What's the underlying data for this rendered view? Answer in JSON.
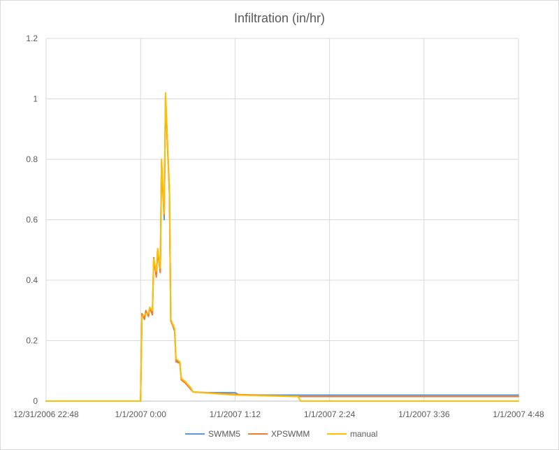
{
  "chart_data": {
    "type": "line",
    "title": "Infiltration (in/hr)",
    "xlabel": "",
    "ylabel": "",
    "xlim": [
      "12/31/2006 22:48",
      "1/1/2007 4:48"
    ],
    "ylim": [
      0,
      1.2
    ],
    "y_ticks": [
      0,
      0.2,
      0.4,
      0.6,
      0.8,
      1,
      1.2
    ],
    "y_tick_labels": [
      "0",
      "0.2",
      "0.4",
      "0.6",
      "0.8",
      "1",
      "1.2"
    ],
    "x_ticks": [
      "12/31/2006 22:48",
      "1/1/2007 0:00",
      "1/1/2007 1:12",
      "1/1/2007 2:24",
      "1/1/2007 3:36",
      "1/1/2007 4:48"
    ],
    "x_tick_labels": [
      "12/31/2006 22:48",
      "1/1/2007 0:00",
      "1/1/2007 1:12",
      "1/1/2007 2:24",
      "1/1/2007 3:36",
      "1/1/2007 4:48"
    ],
    "grid": true,
    "legend_position": "bottom",
    "series": [
      {
        "name": "SWMM5",
        "color": "#5B9BD5",
        "points": [
          [
            "12/31/2006 22:48",
            0
          ],
          [
            "1/1/2007 0:00",
            0
          ],
          [
            "1/1/2007 0:01",
            0.285
          ],
          [
            "1/1/2007 0:03",
            0.275
          ],
          [
            "1/1/2007 0:04",
            0.295
          ],
          [
            "1/1/2007 0:06",
            0.285
          ],
          [
            "1/1/2007 0:07",
            0.305
          ],
          [
            "1/1/2007 0:09",
            0.29
          ],
          [
            "1/1/2007 0:10",
            0.465
          ],
          [
            "1/1/2007 0:12",
            0.42
          ],
          [
            "1/1/2007 0:13",
            0.49
          ],
          [
            "1/1/2007 0:15",
            0.435
          ],
          [
            "1/1/2007 0:16",
            0.785
          ],
          [
            "1/1/2007 0:18",
            0.6
          ],
          [
            "1/1/2007 0:19",
            1.005
          ],
          [
            "1/1/2007 0:22",
            0.685
          ],
          [
            "1/1/2007 0:23",
            0.27
          ],
          [
            "1/1/2007 0:26",
            0.23
          ],
          [
            "1/1/2007 0:27",
            0.135
          ],
          [
            "1/1/2007 0:30",
            0.125
          ],
          [
            "1/1/2007 0:31",
            0.075
          ],
          [
            "1/1/2007 0:34",
            0.065
          ],
          [
            "1/1/2007 0:36",
            0.055
          ],
          [
            "1/1/2007 0:38",
            0.045
          ],
          [
            "1/1/2007 0:40",
            0.03
          ],
          [
            "1/1/2007 0:49",
            0.028
          ],
          [
            "1/1/2007 1:12",
            0.028
          ],
          [
            "1/1/2007 1:15",
            0.02
          ],
          [
            "1/1/2007 2:00",
            0.02
          ],
          [
            "1/1/2007 4:48",
            0.02
          ]
        ]
      },
      {
        "name": "XPSWMM",
        "color": "#ED7D31",
        "points": [
          [
            "12/31/2006 22:48",
            0
          ],
          [
            "1/1/2007 0:00",
            0
          ],
          [
            "1/1/2007 0:01",
            0.29
          ],
          [
            "1/1/2007 0:03",
            0.27
          ],
          [
            "1/1/2007 0:04",
            0.3
          ],
          [
            "1/1/2007 0:06",
            0.28
          ],
          [
            "1/1/2007 0:07",
            0.31
          ],
          [
            "1/1/2007 0:09",
            0.285
          ],
          [
            "1/1/2007 0:10",
            0.475
          ],
          [
            "1/1/2007 0:12",
            0.41
          ],
          [
            "1/1/2007 0:13",
            0.5
          ],
          [
            "1/1/2007 0:15",
            0.425
          ],
          [
            "1/1/2007 0:16",
            0.795
          ],
          [
            "1/1/2007 0:18",
            0.615
          ],
          [
            "1/1/2007 0:19",
            1.01
          ],
          [
            "1/1/2007 0:22",
            0.695
          ],
          [
            "1/1/2007 0:23",
            0.265
          ],
          [
            "1/1/2007 0:26",
            0.235
          ],
          [
            "1/1/2007 0:27",
            0.13
          ],
          [
            "1/1/2007 0:30",
            0.125
          ],
          [
            "1/1/2007 0:31",
            0.07
          ],
          [
            "1/1/2007 0:34",
            0.06
          ],
          [
            "1/1/2007 0:36",
            0.05
          ],
          [
            "1/1/2007 0:38",
            0.04
          ],
          [
            "1/1/2007 0:40",
            0.03
          ],
          [
            "1/1/2007 1:12",
            0.022
          ],
          [
            "1/1/2007 2:00",
            0.015
          ],
          [
            "1/1/2007 4:48",
            0.015
          ]
        ]
      },
      {
        "name": "manual",
        "color": "#FFC000",
        "points": [
          [
            "12/31/2006 22:48",
            0
          ],
          [
            "1/1/2007 0:00",
            0
          ],
          [
            "1/1/2007 0:01",
            0.28
          ],
          [
            "1/1/2007 0:03",
            0.285
          ],
          [
            "1/1/2007 0:04",
            0.29
          ],
          [
            "1/1/2007 0:06",
            0.29
          ],
          [
            "1/1/2007 0:07",
            0.31
          ],
          [
            "1/1/2007 0:09",
            0.3
          ],
          [
            "1/1/2007 0:10",
            0.47
          ],
          [
            "1/1/2007 0:12",
            0.43
          ],
          [
            "1/1/2007 0:13",
            0.505
          ],
          [
            "1/1/2007 0:15",
            0.44
          ],
          [
            "1/1/2007 0:16",
            0.8
          ],
          [
            "1/1/2007 0:18",
            0.62
          ],
          [
            "1/1/2007 0:19",
            1.02
          ],
          [
            "1/1/2007 0:22",
            0.7
          ],
          [
            "1/1/2007 0:23",
            0.27
          ],
          [
            "1/1/2007 0:26",
            0.24
          ],
          [
            "1/1/2007 0:27",
            0.14
          ],
          [
            "1/1/2007 0:30",
            0.13
          ],
          [
            "1/1/2007 0:31",
            0.075
          ],
          [
            "1/1/2007 0:34",
            0.065
          ],
          [
            "1/1/2007 0:36",
            0.055
          ],
          [
            "1/1/2007 0:38",
            0.045
          ],
          [
            "1/1/2007 0:40",
            0.03
          ],
          [
            "1/1/2007 1:12",
            0.02
          ],
          [
            "1/1/2007 2:00",
            0.015
          ],
          [
            "1/1/2007 2:02",
            0
          ],
          [
            "1/1/2007 4:48",
            0
          ]
        ]
      }
    ]
  }
}
